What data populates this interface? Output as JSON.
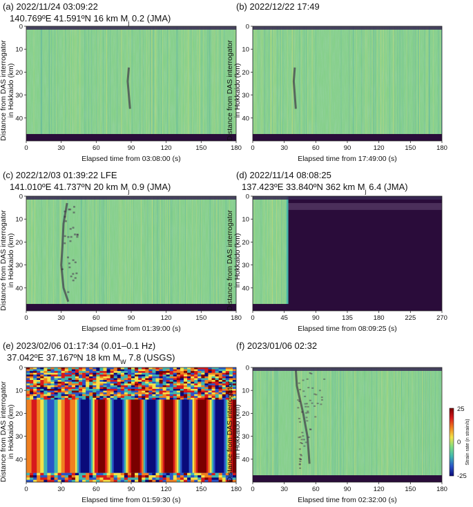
{
  "colorbar": {
    "label": "Strain rate (n strain/s)",
    "ticks": [
      "25",
      "0",
      "-25"
    ],
    "colors": [
      "#7a0000",
      "#d7191c",
      "#f08020",
      "#f3e24a",
      "#7fdc82",
      "#3fb6b0",
      "#2a55c8",
      "#0a0a7a"
    ]
  },
  "chart_data": [
    {
      "id": "a",
      "type": "heatmap",
      "title_line1": "(a) 2022/11/24 03:09:22",
      "title_line2": "140.769ºE 41.591ºN 16 km M",
      "title_sub": "j",
      "title_tail": " 0.2 (JMA)",
      "ylabel_line1": "Distance from DAS interrogator",
      "ylabel_line2": "in Hokkaido (km)",
      "xlabel": "Elapsed time from 03:08:00 (s)",
      "xlim": [
        0,
        180
      ],
      "ylim": [
        0,
        50
      ],
      "xticks": [
        "0",
        "30",
        "60",
        "90",
        "120",
        "150",
        "180"
      ],
      "yticks": [
        "0",
        "10",
        "20",
        "30",
        "40"
      ],
      "style": "plain",
      "event_onset_s": 88
    },
    {
      "id": "b",
      "type": "heatmap",
      "title_line1": "(b) 2022/12/22 17:49",
      "title_line2": "",
      "title_sub": "",
      "title_tail": "",
      "ylabel_line1": "Distance from DAS interrogator",
      "ylabel_line2": "in Hokkaido (km)",
      "xlabel": "Elapsed time from 17:49:00 (s)",
      "xlim": [
        0,
        180
      ],
      "ylim": [
        0,
        50
      ],
      "xticks": [
        "0",
        "30",
        "60",
        "90",
        "120",
        "150",
        "180"
      ],
      "yticks": [
        "0",
        "10",
        "20",
        "30",
        "40"
      ],
      "style": "plain",
      "event_onset_s": 40
    },
    {
      "id": "c",
      "type": "heatmap",
      "title_line1": "(c) 2022/12/03 01:39:22 LFE",
      "title_line2": "141.010ºE 41.737ºN 20 km M",
      "title_sub": "j",
      "title_tail": " 0.9 (JMA)",
      "ylabel_line1": "Distance from DAS interrogator",
      "ylabel_line2": "in Hokkaido (km)",
      "xlabel": "Elapsed time from 01:39:00 (s)",
      "xlim": [
        0,
        180
      ],
      "ylim": [
        0,
        50
      ],
      "xticks": [
        "0",
        "30",
        "60",
        "90",
        "120",
        "150",
        "180"
      ],
      "yticks": [
        "0",
        "10",
        "20",
        "30",
        "40"
      ],
      "style": "lfe",
      "event_onset_s": 30
    },
    {
      "id": "d",
      "type": "heatmap",
      "title_line1": "(d) 2022/11/14 08:08:25",
      "title_line2": "137.423ºE 33.840ºN 362 km M",
      "title_sub": "j",
      "title_tail": " 6.4 (JMA)",
      "ylabel_line1": "Distance from DAS interrogator",
      "ylabel_line2": "in Hokkaido (km)",
      "xlabel": "Elapsed time from 08:09:25 (s)",
      "xlim": [
        0,
        270
      ],
      "ylim": [
        0,
        50
      ],
      "xticks": [
        "0",
        "45",
        "90",
        "135",
        "180",
        "225",
        "270"
      ],
      "yticks": [
        "0",
        "10",
        "20",
        "30",
        "40"
      ],
      "style": "saturated",
      "event_onset_s": 50
    },
    {
      "id": "e",
      "type": "heatmap",
      "title_line1": "(e) 2023/02/06 01:17:34 (0.01–0.1 Hz)",
      "title_line2": "37.042ºE 37.167ºN 18 km M",
      "title_sub": "W",
      "title_tail": " 7.8 (USGS)",
      "ylabel_line1": "Distance from DAS interrogator",
      "ylabel_line2": "in Hokkaido (km)",
      "xlabel": "Elapsed time from 01:59:30 (s)",
      "xlim": [
        0,
        180
      ],
      "ylim": [
        0,
        50
      ],
      "xticks": [
        "0",
        "30",
        "60",
        "90",
        "120",
        "150",
        "180"
      ],
      "yticks": [
        "0",
        "10",
        "20",
        "30",
        "40"
      ],
      "style": "surface",
      "event_onset_s": 0
    },
    {
      "id": "f",
      "type": "heatmap",
      "title_line1": "(f) 2023/01/06 02:32",
      "title_line2": "",
      "title_sub": "",
      "title_tail": "",
      "ylabel_line1": "Distance from DAS interrogator",
      "ylabel_line2": "in Hokkaido (km)",
      "xlabel": "Elapsed time from 02:32:00 (s)",
      "xlim": [
        0,
        180
      ],
      "ylim": [
        0,
        50
      ],
      "xticks": [
        "0",
        "30",
        "60",
        "90",
        "120",
        "150",
        "180"
      ],
      "yticks": [
        "0",
        "10",
        "20",
        "30",
        "40"
      ],
      "style": "cone",
      "event_onset_s": 40
    }
  ]
}
